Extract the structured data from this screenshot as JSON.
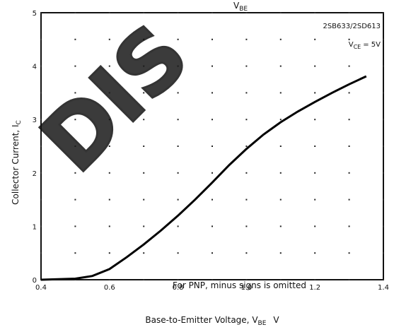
{
  "chart_data": {
    "type": "line",
    "title_fragment": "V",
    "title_fragment_sub": "BE",
    "part_number": "2SB633/2SD613",
    "condition": "V",
    "condition_sub": "CE",
    "condition_value": "= 5V",
    "ylabel": "Collector Current, I",
    "ylabel_sub": "C",
    "xlabel": "Base-to-Emitter Voltage, V",
    "xlabel_sub": "BE",
    "xlabel_unit": "V",
    "annotation": "For PNP, minus signs is omitted",
    "watermark": "DIS",
    "xlim": [
      0.4,
      1.4
    ],
    "ylim": [
      0,
      5
    ],
    "x_ticks": [
      "0.4",
      "0.6",
      "0.8",
      "1.0",
      "1.2",
      "1.4"
    ],
    "y_ticks": [
      "0",
      "1",
      "2",
      "3",
      "4",
      "5"
    ],
    "grid": "dotted",
    "series": [
      {
        "x": [
          0.4,
          0.5,
          0.55,
          0.6,
          0.65,
          0.7,
          0.75,
          0.8,
          0.85,
          0.9,
          0.95,
          1.0,
          1.05,
          1.1,
          1.15,
          1.2,
          1.25,
          1.3,
          1.35
        ],
        "y": [
          0.0,
          0.02,
          0.07,
          0.2,
          0.42,
          0.66,
          0.92,
          1.2,
          1.5,
          1.82,
          2.15,
          2.45,
          2.72,
          2.95,
          3.15,
          3.33,
          3.5,
          3.66,
          3.81
        ]
      }
    ]
  }
}
